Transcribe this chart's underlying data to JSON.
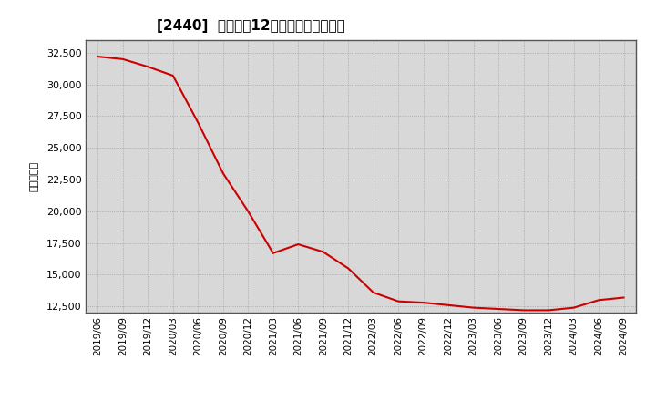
{
  "title": "[2440]  売上高の12か月移動合計の推移",
  "ylabel": "（百万円）",
  "line_color": "#cc0000",
  "bg_color": "#ffffff",
  "plot_bg_color": "#d8d8d8",
  "grid_color": "#888888",
  "ylim": [
    12000,
    33500
  ],
  "yticks": [
    12500,
    15000,
    17500,
    20000,
    22500,
    25000,
    27500,
    30000,
    32500
  ],
  "dates": [
    "2019/06",
    "2019/09",
    "2019/12",
    "2020/03",
    "2020/06",
    "2020/09",
    "2020/12",
    "2021/03",
    "2021/06",
    "2021/09",
    "2021/12",
    "2022/03",
    "2022/06",
    "2022/09",
    "2022/12",
    "2023/03",
    "2023/06",
    "2023/09",
    "2023/12",
    "2024/03",
    "2024/06",
    "2024/09"
  ],
  "values": [
    32200,
    32000,
    31400,
    30700,
    27000,
    23000,
    20000,
    16700,
    17400,
    16800,
    15500,
    13600,
    12900,
    12800,
    12600,
    12400,
    12300,
    12200,
    12200,
    12400,
    13000,
    13200
  ]
}
